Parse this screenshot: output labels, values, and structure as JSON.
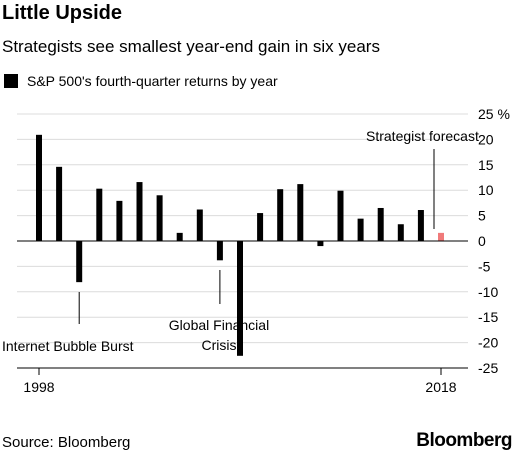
{
  "title": "Little Upside",
  "subtitle": "Strategists see smallest year-end gain in six years",
  "legend": {
    "label": "S&P 500's fourth-quarter returns by year"
  },
  "source": "Source: Bloomberg",
  "brand": "Bloomberg",
  "chart_data": {
    "type": "bar",
    "title": "Little Upside",
    "subtitle": "Strategists see smallest year-end gain in six years",
    "xlabel": "",
    "ylabel": "",
    "ylim": [
      -25,
      25
    ],
    "y_ticks": [
      {
        "value": 25,
        "label": "25 %"
      },
      {
        "value": 20,
        "label": "20"
      },
      {
        "value": 15,
        "label": "15"
      },
      {
        "value": 10,
        "label": "10"
      },
      {
        "value": 5,
        "label": "5"
      },
      {
        "value": 0,
        "label": "0"
      },
      {
        "value": -5,
        "label": "-5"
      },
      {
        "value": -10,
        "label": "-10"
      },
      {
        "value": -15,
        "label": "-15"
      },
      {
        "value": -20,
        "label": "-20"
      },
      {
        "value": -25,
        "label": "-25"
      }
    ],
    "x_tick_labels": [
      "1998",
      "2018"
    ],
    "categories": [
      "1998",
      "1999",
      "2000",
      "2001",
      "2002",
      "2003",
      "2004",
      "2005",
      "2006",
      "2007",
      "2008",
      "2009",
      "2010",
      "2011",
      "2012",
      "2013",
      "2014",
      "2015",
      "2016",
      "2017",
      "2018"
    ],
    "values": [
      20.9,
      14.6,
      -8.1,
      10.3,
      7.9,
      11.6,
      9.0,
      1.6,
      6.2,
      -3.8,
      -22.6,
      5.5,
      10.2,
      11.2,
      -1.0,
      9.9,
      4.4,
      6.5,
      3.3,
      6.1,
      1.6
    ],
    "colors": {
      "actual": "#000000",
      "forecast": "#f07a7a"
    },
    "forecast_category": "2018",
    "grid": true,
    "legend_position": "top-left",
    "annotations": [
      {
        "text": "Internet Bubble Burst",
        "category": "2000"
      },
      {
        "text": "Global Financial Crisis",
        "category": "2007"
      },
      {
        "text": "Strategist forecast",
        "category": "2018"
      }
    ]
  }
}
